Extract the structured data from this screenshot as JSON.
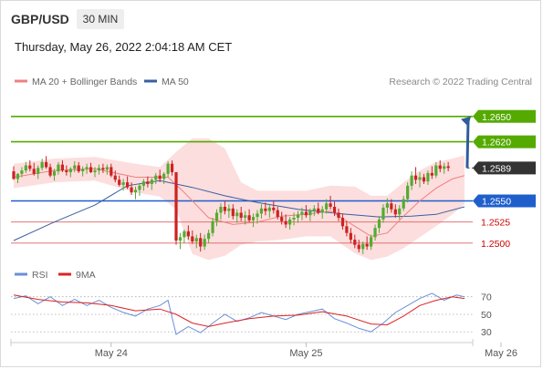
{
  "header": {
    "symbol": "GBP/USD",
    "timeframe": "30 MIN",
    "datetime": "Thursday, May 26, 2022 2:04:18 AM CET"
  },
  "colors": {
    "up": "#55aa33",
    "down": "#cc2222",
    "ma20": "#f08080",
    "bands": "#fbd3d3",
    "ma50": "#3a5fa0",
    "resistance": "#55aa00",
    "support": "#1f5fcc",
    "weak": "#e06060",
    "weak_text": "#cc0000",
    "current": "#333333",
    "arrow": "#2f5d9a",
    "rsi": "#6a8fd8",
    "rsi_ma": "#dd2222"
  },
  "chart_data": [
    {
      "type": "candlestick",
      "legend": [
        {
          "name": "MA 20 + Bollinger Bands",
          "color": "#f08080"
        },
        {
          "name": "MA 50",
          "color": "#3a5fa0"
        }
      ],
      "copyright": "Research © 2022 Trading Central",
      "ylim": [
        1.2475,
        1.268
      ],
      "x_ticks": [
        {
          "label": "May 24",
          "index": 24
        },
        {
          "label": "May 25",
          "index": 72
        },
        {
          "label": "May 26",
          "index": 120
        }
      ],
      "candles": [
        [
          1.2585,
          1.2591,
          1.2575,
          1.2576
        ],
        [
          1.2576,
          1.2583,
          1.2571,
          1.2582
        ],
        [
          1.2582,
          1.259,
          1.2578,
          1.2586
        ],
        [
          1.2586,
          1.2596,
          1.2583,
          1.2592
        ],
        [
          1.2592,
          1.2598,
          1.2585,
          1.2588
        ],
        [
          1.2588,
          1.2595,
          1.258,
          1.2582
        ],
        [
          1.2582,
          1.2592,
          1.2576,
          1.2589
        ],
        [
          1.2589,
          1.26,
          1.2586,
          1.2596
        ],
        [
          1.2596,
          1.2603,
          1.2588,
          1.259
        ],
        [
          1.259,
          1.2594,
          1.2578,
          1.258
        ],
        [
          1.258,
          1.2588,
          1.2574,
          1.2585
        ],
        [
          1.2585,
          1.2596,
          1.2581,
          1.2593
        ],
        [
          1.2593,
          1.2598,
          1.2584,
          1.2586
        ],
        [
          1.2586,
          1.2592,
          1.258,
          1.2584
        ],
        [
          1.2584,
          1.259,
          1.2578,
          1.2588
        ],
        [
          1.2588,
          1.2597,
          1.2584,
          1.2592
        ],
        [
          1.2592,
          1.2596,
          1.2583,
          1.2585
        ],
        [
          1.2585,
          1.2591,
          1.2579,
          1.2588
        ],
        [
          1.2588,
          1.2594,
          1.2582,
          1.259
        ],
        [
          1.259,
          1.2595,
          1.2583,
          1.2584
        ],
        [
          1.2584,
          1.259,
          1.2578,
          1.2586
        ],
        [
          1.2586,
          1.2593,
          1.2581,
          1.2589
        ],
        [
          1.2589,
          1.2594,
          1.2583,
          1.2587
        ],
        [
          1.2587,
          1.2593,
          1.2581,
          1.259
        ],
        [
          1.259,
          1.2594,
          1.2578,
          1.258
        ],
        [
          1.258,
          1.2586,
          1.2572,
          1.2575
        ],
        [
          1.2575,
          1.258,
          1.2567,
          1.2569
        ],
        [
          1.2569,
          1.2576,
          1.2562,
          1.2572
        ],
        [
          1.2572,
          1.2579,
          1.2564,
          1.2566
        ],
        [
          1.2566,
          1.2572,
          1.2557,
          1.256
        ],
        [
          1.256,
          1.2567,
          1.2552,
          1.2563
        ],
        [
          1.2563,
          1.257,
          1.2556,
          1.2568
        ],
        [
          1.2568,
          1.2576,
          1.2562,
          1.2573
        ],
        [
          1.2573,
          1.2579,
          1.2566,
          1.257
        ],
        [
          1.257,
          1.2577,
          1.2563,
          1.2575
        ],
        [
          1.2575,
          1.2583,
          1.257,
          1.258
        ],
        [
          1.258,
          1.2587,
          1.2572,
          1.2576
        ],
        [
          1.2576,
          1.2584,
          1.257,
          1.2582
        ],
        [
          1.2582,
          1.2597,
          1.2578,
          1.2594
        ],
        [
          1.2594,
          1.2598,
          1.258,
          1.2584
        ],
        [
          1.2584,
          1.2584,
          1.2498,
          1.2503
        ],
        [
          1.2503,
          1.2512,
          1.2493,
          1.2507
        ],
        [
          1.2507,
          1.2516,
          1.25,
          1.2514
        ],
        [
          1.2514,
          1.2521,
          1.2504,
          1.2508
        ],
        [
          1.2508,
          1.2515,
          1.2499,
          1.2502
        ],
        [
          1.2502,
          1.251,
          1.2494,
          1.2506
        ],
        [
          1.2506,
          1.2512,
          1.249,
          1.2496
        ],
        [
          1.2496,
          1.251,
          1.2492,
          1.2505
        ],
        [
          1.2505,
          1.2516,
          1.25,
          1.2512
        ],
        [
          1.2512,
          1.253,
          1.2508,
          1.2526
        ],
        [
          1.2526,
          1.254,
          1.252,
          1.2536
        ],
        [
          1.2536,
          1.2547,
          1.2528,
          1.2543
        ],
        [
          1.2543,
          1.255,
          1.2534,
          1.2538
        ],
        [
          1.2538,
          1.2546,
          1.253,
          1.2541
        ],
        [
          1.2541,
          1.2546,
          1.2528,
          1.2532
        ],
        [
          1.2532,
          1.254,
          1.2524,
          1.2536
        ],
        [
          1.2536,
          1.2543,
          1.2526,
          1.253
        ],
        [
          1.253,
          1.2538,
          1.2522,
          1.2533
        ],
        [
          1.2533,
          1.254,
          1.2525,
          1.2527
        ],
        [
          1.2527,
          1.2535,
          1.2519,
          1.2531
        ],
        [
          1.2531,
          1.2539,
          1.2523,
          1.2535
        ],
        [
          1.2535,
          1.2546,
          1.2529,
          1.2541
        ],
        [
          1.2541,
          1.2548,
          1.2533,
          1.2538
        ],
        [
          1.2538,
          1.2545,
          1.253,
          1.2542
        ],
        [
          1.2542,
          1.255,
          1.2535,
          1.2539
        ],
        [
          1.2539,
          1.2543,
          1.2528,
          1.2531
        ],
        [
          1.2531,
          1.2537,
          1.2522,
          1.2526
        ],
        [
          1.2526,
          1.2534,
          1.2518,
          1.2522
        ],
        [
          1.2522,
          1.2531,
          1.2516,
          1.2528
        ],
        [
          1.2528,
          1.2536,
          1.2521,
          1.253
        ],
        [
          1.253,
          1.2538,
          1.2524,
          1.2534
        ],
        [
          1.2534,
          1.2542,
          1.2527,
          1.2537
        ],
        [
          1.2537,
          1.2545,
          1.253,
          1.2533
        ],
        [
          1.2533,
          1.2541,
          1.2526,
          1.2538
        ],
        [
          1.2538,
          1.2545,
          1.2532,
          1.2541
        ],
        [
          1.2541,
          1.2548,
          1.2534,
          1.2536
        ],
        [
          1.2536,
          1.2544,
          1.2529,
          1.254
        ],
        [
          1.254,
          1.2552,
          1.2535,
          1.2547
        ],
        [
          1.2547,
          1.2556,
          1.254,
          1.2543
        ],
        [
          1.2543,
          1.2549,
          1.2532,
          1.2536
        ],
        [
          1.2536,
          1.2541,
          1.2526,
          1.253
        ],
        [
          1.253,
          1.2535,
          1.2516,
          1.252
        ],
        [
          1.252,
          1.2526,
          1.2508,
          1.2512
        ],
        [
          1.2512,
          1.2518,
          1.25,
          1.2504
        ],
        [
          1.2504,
          1.251,
          1.2494,
          1.2498
        ],
        [
          1.2498,
          1.2504,
          1.2489,
          1.2493
        ],
        [
          1.2493,
          1.2502,
          1.2487,
          1.2499
        ],
        [
          1.2499,
          1.2508,
          1.2492,
          1.2496
        ],
        [
          1.2496,
          1.251,
          1.2492,
          1.2507
        ],
        [
          1.2507,
          1.2522,
          1.2503,
          1.2518
        ],
        [
          1.2518,
          1.2532,
          1.2512,
          1.2528
        ],
        [
          1.2528,
          1.2546,
          1.2524,
          1.2542
        ],
        [
          1.2542,
          1.2553,
          1.2535,
          1.2547
        ],
        [
          1.2547,
          1.2552,
          1.2536,
          1.254
        ],
        [
          1.254,
          1.2546,
          1.253,
          1.2534
        ],
        [
          1.2534,
          1.2545,
          1.2528,
          1.2541
        ],
        [
          1.2541,
          1.2556,
          1.2538,
          1.2552
        ],
        [
          1.2552,
          1.2572,
          1.2548,
          1.2568
        ],
        [
          1.2568,
          1.2585,
          1.2563,
          1.258
        ],
        [
          1.258,
          1.259,
          1.257,
          1.2575
        ],
        [
          1.2575,
          1.2584,
          1.2566,
          1.2578
        ],
        [
          1.2578,
          1.2582,
          1.257,
          1.2573
        ],
        [
          1.2573,
          1.2586,
          1.2569,
          1.2583
        ],
        [
          1.2583,
          1.2591,
          1.2576,
          1.258
        ],
        [
          1.258,
          1.2596,
          1.2577,
          1.2592
        ],
        [
          1.2592,
          1.2598,
          1.2584,
          1.2588
        ],
        [
          1.2588,
          1.2595,
          1.2582,
          1.2591
        ],
        [
          1.2591,
          1.2596,
          1.2585,
          1.2589
        ]
      ],
      "ma20": [
        [
          0,
          1.2578
        ],
        [
          10,
          1.2586
        ],
        [
          20,
          1.2588
        ],
        [
          30,
          1.2578
        ],
        [
          38,
          1.2578
        ],
        [
          42,
          1.256
        ],
        [
          48,
          1.253
        ],
        [
          54,
          1.2522
        ],
        [
          60,
          1.2525
        ],
        [
          66,
          1.2532
        ],
        [
          72,
          1.2534
        ],
        [
          78,
          1.2538
        ],
        [
          84,
          1.252
        ],
        [
          88,
          1.2508
        ],
        [
          92,
          1.2512
        ],
        [
          96,
          1.2532
        ],
        [
          100,
          1.255
        ],
        [
          104,
          1.2565
        ],
        [
          108,
          1.2576
        ],
        [
          111,
          1.258
        ]
      ],
      "bb_upper": [
        [
          0,
          1.2594
        ],
        [
          10,
          1.26
        ],
        [
          20,
          1.2602
        ],
        [
          30,
          1.2594
        ],
        [
          36,
          1.259
        ],
        [
          40,
          1.2608
        ],
        [
          44,
          1.2624
        ],
        [
          48,
          1.2624
        ],
        [
          52,
          1.2612
        ],
        [
          56,
          1.2572
        ],
        [
          60,
          1.2562
        ],
        [
          66,
          1.2562
        ],
        [
          72,
          1.2562
        ],
        [
          78,
          1.2568
        ],
        [
          84,
          1.2567
        ],
        [
          88,
          1.2556
        ],
        [
          92,
          1.2556
        ],
        [
          96,
          1.2572
        ],
        [
          100,
          1.2586
        ],
        [
          104,
          1.2596
        ],
        [
          108,
          1.26
        ],
        [
          111,
          1.2604
        ]
      ],
      "bb_lower": [
        [
          0,
          1.2565
        ],
        [
          10,
          1.2572
        ],
        [
          20,
          1.2574
        ],
        [
          30,
          1.256
        ],
        [
          36,
          1.2555
        ],
        [
          40,
          1.254
        ],
        [
          44,
          1.2487
        ],
        [
          48,
          1.248
        ],
        [
          52,
          1.2485
        ],
        [
          56,
          1.2498
        ],
        [
          60,
          1.2502
        ],
        [
          66,
          1.2504
        ],
        [
          72,
          1.2508
        ],
        [
          78,
          1.2508
        ],
        [
          84,
          1.2488
        ],
        [
          88,
          1.248
        ],
        [
          92,
          1.2484
        ],
        [
          96,
          1.2494
        ],
        [
          100,
          1.2507
        ],
        [
          104,
          1.252
        ],
        [
          108,
          1.2534
        ],
        [
          111,
          1.2546
        ]
      ],
      "ma50": [
        [
          0,
          1.2503
        ],
        [
          10,
          1.2525
        ],
        [
          20,
          1.2545
        ],
        [
          28,
          1.2568
        ],
        [
          36,
          1.2574
        ],
        [
          44,
          1.2566
        ],
        [
          52,
          1.2556
        ],
        [
          60,
          1.2548
        ],
        [
          70,
          1.254
        ],
        [
          80,
          1.2535
        ],
        [
          90,
          1.2531
        ],
        [
          98,
          1.2532
        ],
        [
          104,
          1.2534
        ],
        [
          111,
          1.2543
        ]
      ],
      "levels": [
        {
          "label": "1.2650",
          "value": 1.265,
          "style": "resistance-strong"
        },
        {
          "label": "1.2620",
          "value": 1.262,
          "style": "resistance"
        },
        {
          "label": "1.2589",
          "value": 1.2589,
          "style": "current"
        },
        {
          "label": "1.2550",
          "value": 1.255,
          "style": "pivot"
        },
        {
          "label": "1.2525",
          "value": 1.2525,
          "style": "support"
        },
        {
          "label": "1.2500",
          "value": 1.25,
          "style": "support"
        }
      ],
      "forecast_arrow": {
        "from": [
          111,
          1.2589
        ],
        "to_value": 1.265
      }
    },
    {
      "type": "line",
      "legend": [
        {
          "name": "RSI",
          "color": "#6a8fd8"
        },
        {
          "name": "9MA",
          "color": "#dd2222"
        }
      ],
      "ylim": [
        24,
        78
      ],
      "y_ticks": [
        70,
        50,
        30
      ],
      "rsi": [
        [
          0,
          68
        ],
        [
          3,
          71
        ],
        [
          6,
          62
        ],
        [
          9,
          70
        ],
        [
          12,
          60
        ],
        [
          15,
          67
        ],
        [
          18,
          60
        ],
        [
          21,
          66
        ],
        [
          24,
          58
        ],
        [
          27,
          52
        ],
        [
          30,
          48
        ],
        [
          33,
          56
        ],
        [
          36,
          60
        ],
        [
          38,
          66
        ],
        [
          40,
          27
        ],
        [
          43,
          36
        ],
        [
          46,
          29
        ],
        [
          49,
          40
        ],
        [
          52,
          50
        ],
        [
          55,
          42
        ],
        [
          58,
          46
        ],
        [
          61,
          52
        ],
        [
          64,
          48
        ],
        [
          67,
          44
        ],
        [
          70,
          50
        ],
        [
          73,
          53
        ],
        [
          76,
          56
        ],
        [
          79,
          45
        ],
        [
          82,
          40
        ],
        [
          85,
          34
        ],
        [
          88,
          30
        ],
        [
          91,
          40
        ],
        [
          94,
          52
        ],
        [
          97,
          60
        ],
        [
          100,
          68
        ],
        [
          103,
          74
        ],
        [
          106,
          66
        ],
        [
          109,
          72
        ],
        [
          111,
          70
        ]
      ],
      "rsi_ma": [
        [
          0,
          72
        ],
        [
          6,
          67
        ],
        [
          12,
          64
        ],
        [
          18,
          63
        ],
        [
          24,
          60
        ],
        [
          30,
          54
        ],
        [
          36,
          56
        ],
        [
          40,
          50
        ],
        [
          44,
          40
        ],
        [
          48,
          36
        ],
        [
          52,
          40
        ],
        [
          58,
          45
        ],
        [
          64,
          48
        ],
        [
          70,
          49
        ],
        [
          76,
          53
        ],
        [
          82,
          48
        ],
        [
          88,
          39
        ],
        [
          92,
          38
        ],
        [
          96,
          48
        ],
        [
          100,
          60
        ],
        [
          104,
          66
        ],
        [
          108,
          70
        ],
        [
          111,
          68
        ]
      ]
    }
  ]
}
